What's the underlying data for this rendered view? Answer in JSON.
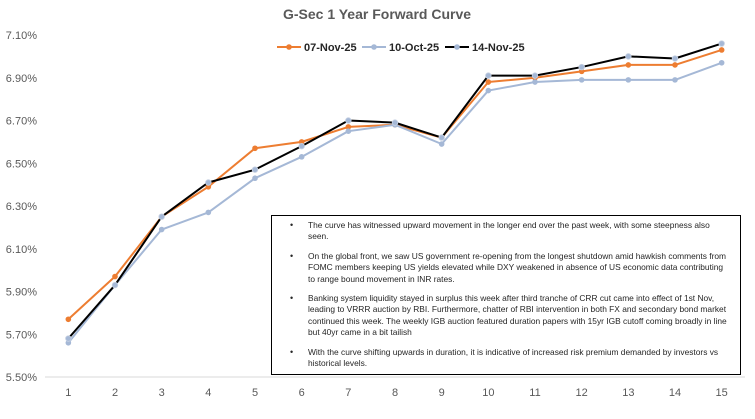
{
  "chart_data": {
    "type": "line",
    "title": "G-Sec 1 Year Forward Curve",
    "xlabel": "",
    "ylabel": "",
    "categories": [
      "1",
      "2",
      "3",
      "4",
      "5",
      "6",
      "7",
      "8",
      "9",
      "10",
      "11",
      "12",
      "13",
      "14",
      "15"
    ],
    "y_ticks": [
      "5.50%",
      "5.70%",
      "5.90%",
      "6.10%",
      "6.30%",
      "6.50%",
      "6.70%",
      "6.90%",
      "7.10%"
    ],
    "ylim": [
      5.5,
      7.1
    ],
    "grid": false,
    "legend_position": "top",
    "series": [
      {
        "name": "07-Nov-25",
        "color": "#ED7D31",
        "values": [
          5.77,
          5.97,
          6.25,
          6.39,
          6.57,
          6.6,
          6.67,
          6.68,
          6.62,
          6.88,
          6.9,
          6.93,
          6.96,
          6.96,
          7.03
        ]
      },
      {
        "name": "10-Oct-25",
        "color": "#A5B8D6",
        "values": [
          5.66,
          5.93,
          6.19,
          6.27,
          6.43,
          6.53,
          6.65,
          6.68,
          6.59,
          6.84,
          6.88,
          6.89,
          6.89,
          6.89,
          6.97
        ]
      },
      {
        "name": "14-Nov-25",
        "color": "#000000",
        "values": [
          5.68,
          5.93,
          6.25,
          6.41,
          6.47,
          6.58,
          6.7,
          6.69,
          6.62,
          6.91,
          6.91,
          6.95,
          7.0,
          6.99,
          7.06
        ]
      }
    ]
  },
  "notes": [
    "The curve has witnessed upward movement in the longer end over the past week, with some steepness also seen.",
    "On the global front, we saw US government re-opening from the longest shutdown amid hawkish comments from FOMC members keeping US yields elevated while DXY weakened in absence of US economic data contributing to range bound movement in INR rates.",
    "Banking system liquidity stayed in surplus this week after third tranche of CRR cut came into effect of 1st Nov, leading to VRRR auction by RBI. Furthermore, chatter of RBI intervention in both FX and secondary bond market continued this week. The weekly IGB auction featured duration papers with 15yr IGB cutoff coming broadly in line but 40yr came in a bit tailish",
    "With the curve shifting upwards in duration, it is indicative of increased risk premium demanded by investors vs historical levels."
  ]
}
